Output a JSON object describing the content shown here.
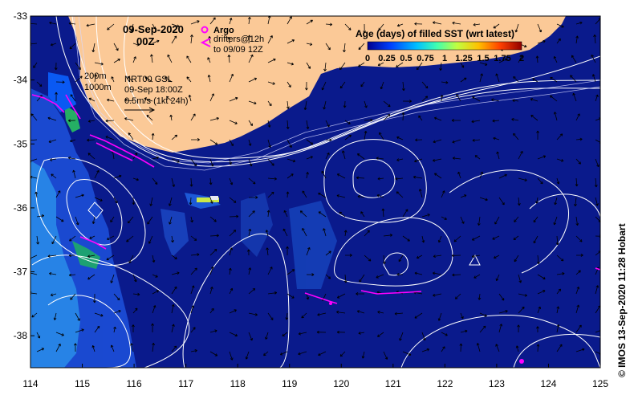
{
  "map": {
    "date_title": "09-Sep-2020",
    "time_title": "00Z",
    "legend_argo": "Argo",
    "legend_drifters_1": "drifters@12h",
    "legend_drifters_2": "to 09/09 12Z",
    "colorbar_title": "Age (days) of filled SST (wrt latest)",
    "colorbar_ticks": [
      "0",
      "0.25",
      "0.5",
      "0.75",
      "1",
      "1.25",
      "1.5",
      "1.75",
      "2"
    ],
    "depth_label_1": "200m",
    "depth_label_2": "1000m",
    "altimetry_1": "NRT00 GSL",
    "altimetry_2": "09-Sep 18:00Z",
    "velocity_scale": "0.5m/s (1kt 24h)",
    "credit": "© IMOS 13-Sep-2020 11:28 Hobart",
    "lon_ticks": [
      "114",
      "115",
      "116",
      "117",
      "118",
      "119",
      "120",
      "121",
      "122",
      "123",
      "124",
      "125"
    ],
    "lat_ticks": [
      "-33",
      "-34",
      "-35",
      "-36",
      "-37",
      "-38"
    ],
    "extent": {
      "lon": [
        114,
        125
      ],
      "lat": [
        -38.5,
        -33
      ]
    },
    "colors": {
      "ocean": "#0a1a8c",
      "land": "#fbc997",
      "contours": "#ffffff",
      "drifters": "#ff00ff",
      "argo": "#ff00ff"
    }
  }
}
